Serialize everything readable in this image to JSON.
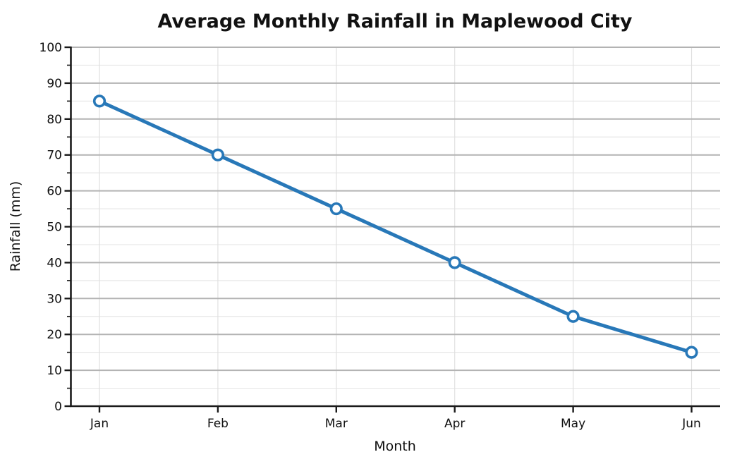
{
  "page": {
    "background": "#ffffff"
  },
  "chart_data": {
    "type": "line",
    "title": "Average Monthly Rainfall in Maplewood City",
    "xlabel": "Month",
    "ylabel": "Rainfall (mm)",
    "categories": [
      "Jan",
      "Feb",
      "Mar",
      "Apr",
      "May",
      "Jun"
    ],
    "values": [
      85,
      70,
      55,
      40,
      25,
      15
    ],
    "ylim": [
      0,
      100
    ],
    "ytick_step": 10,
    "ytick_minor_step": 5,
    "grid": true,
    "legend": "none",
    "line_color": "#2878b8",
    "marker": "open-circle",
    "marker_face_color": "#ffffff",
    "grid_major_color": "#b3b3b3",
    "grid_minor_color": "#e7e7e7",
    "grid_vertical_color": "#e0e0e0",
    "axis_color": "#1a1a1a",
    "text_color": "#111111"
  }
}
